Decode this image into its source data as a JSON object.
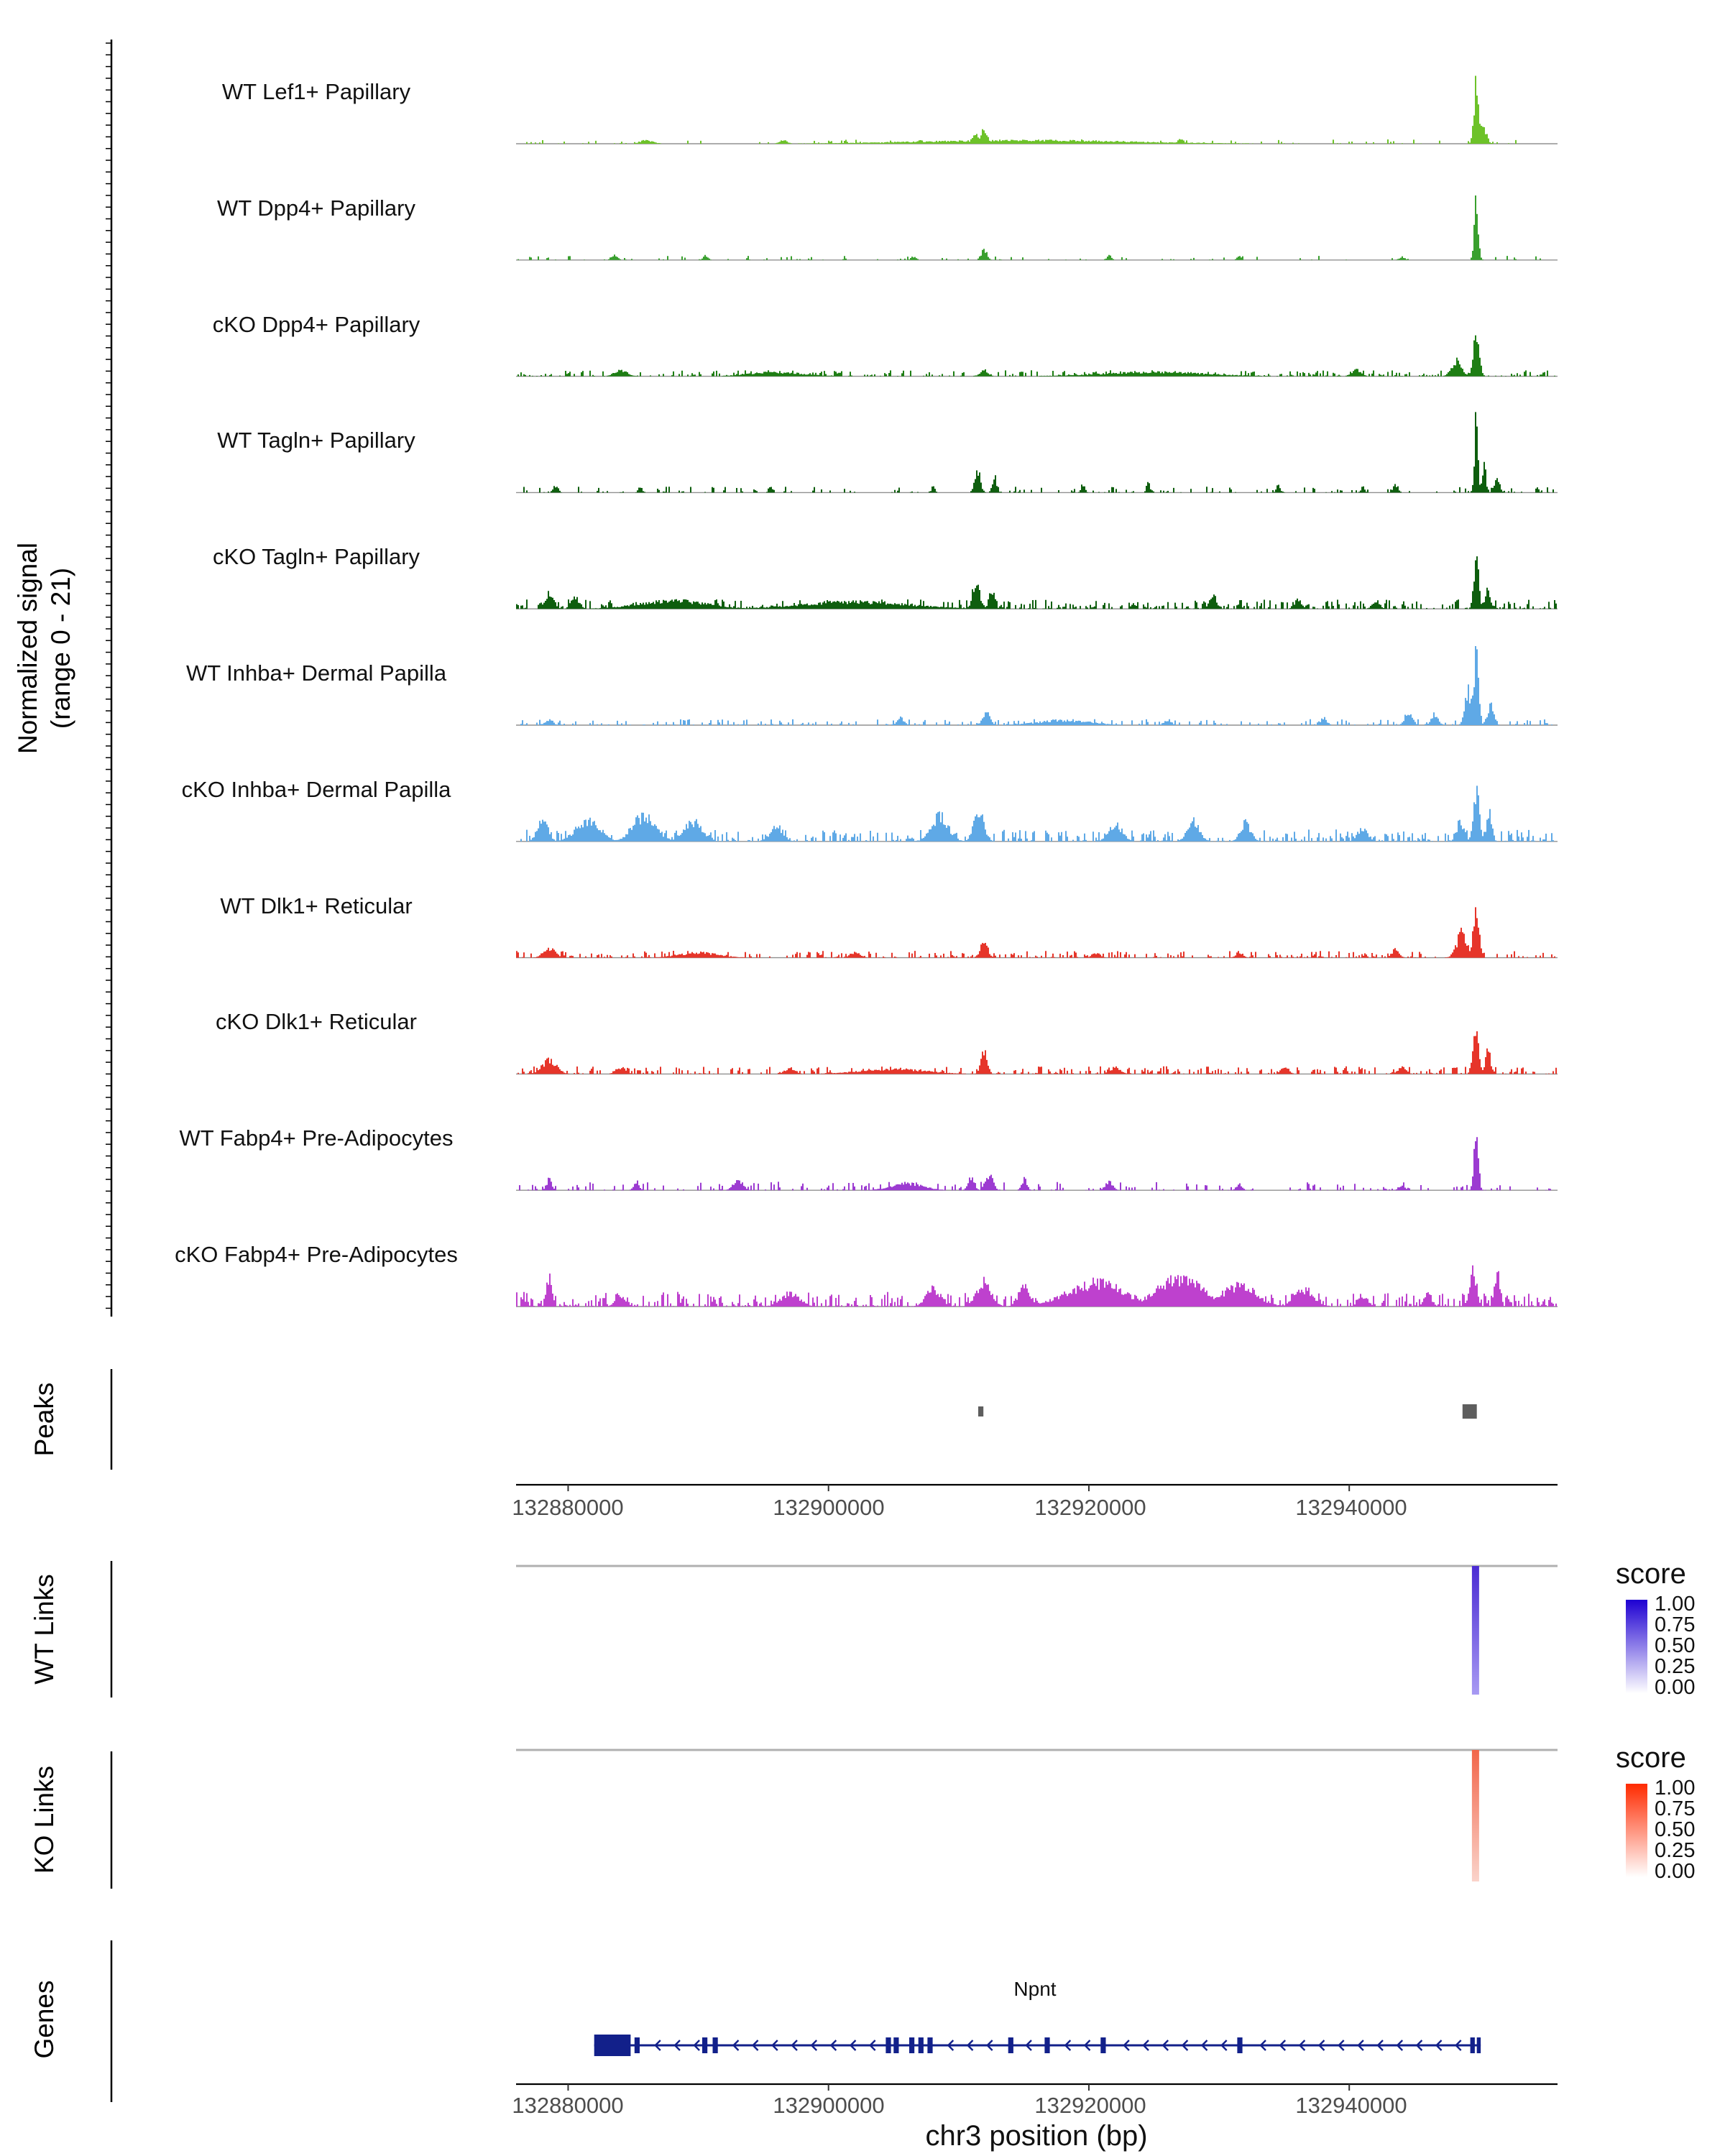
{
  "chart_data": {
    "type": "area",
    "title": "",
    "region": {
      "chrom": "chr3",
      "start": 132876000,
      "end": 132956000
    },
    "axis": {
      "y_label_line1": "Normalized signal",
      "y_label_line2": "(range 0 - 21)",
      "y_range": [
        0,
        21
      ],
      "x_label": "chr3 position (bp)",
      "x_ticks": [
        132880000,
        132900000,
        132920000,
        132940000
      ],
      "x_tick_labels": [
        "132880000",
        "132900000",
        "132920000",
        "132940000"
      ]
    },
    "section_labels": {
      "peaks": "Peaks",
      "wt_links": "WT Links",
      "ko_links": "KO Links",
      "genes": "Genes"
    },
    "tracks": [
      {
        "label": "WT Lef1+ Papillary",
        "color": "#6DC229",
        "noise": {
          "density": 0.22,
          "amp": 0.05
        },
        "peaks": [
          [
            132911900,
            0.22,
            260
          ],
          [
            132911300,
            0.12,
            350
          ],
          [
            132949700,
            0.92,
            170
          ],
          [
            132950200,
            0.28,
            260
          ],
          [
            132886000,
            0.05,
            500
          ],
          [
            132896500,
            0.05,
            300
          ],
          [
            132907000,
            0.05,
            300
          ],
          [
            132927000,
            0.06,
            250
          ],
          [
            132915000,
            0.05,
            8000
          ]
        ]
      },
      {
        "label": "WT Dpp4+ Papillary",
        "color": "#39A02E",
        "noise": {
          "density": 0.18,
          "amp": 0.05
        },
        "peaks": [
          [
            132911900,
            0.15,
            220
          ],
          [
            132949700,
            0.85,
            150
          ],
          [
            132883500,
            0.07,
            250
          ],
          [
            132890500,
            0.06,
            200
          ],
          [
            132906500,
            0.05,
            200
          ],
          [
            132921500,
            0.07,
            180
          ],
          [
            132931500,
            0.05,
            180
          ],
          [
            132944000,
            0.05,
            200
          ]
        ]
      },
      {
        "label": "cKO Dpp4+ Papillary",
        "color": "#1E7E14",
        "noise": {
          "density": 0.5,
          "amp": 0.07
        },
        "peaks": [
          [
            132949700,
            0.52,
            240
          ],
          [
            132948200,
            0.22,
            400
          ],
          [
            132911900,
            0.09,
            300
          ],
          [
            132884000,
            0.08,
            500
          ],
          [
            132940500,
            0.1,
            350
          ],
          [
            132925000,
            0.06,
            4000
          ],
          [
            132896000,
            0.06,
            2000
          ]
        ]
      },
      {
        "label": "WT Tagln+ Papillary",
        "color": "#0E5E0E",
        "noise": {
          "density": 0.3,
          "amp": 0.07
        },
        "peaks": [
          [
            132911400,
            0.3,
            220
          ],
          [
            132912700,
            0.26,
            160
          ],
          [
            132949700,
            1.0,
            140
          ],
          [
            132950300,
            0.45,
            130
          ],
          [
            132951300,
            0.22,
            200
          ],
          [
            132943500,
            0.12,
            200
          ],
          [
            132879000,
            0.1,
            180
          ],
          [
            132885500,
            0.08,
            150
          ],
          [
            132895500,
            0.12,
            130
          ],
          [
            132908000,
            0.1,
            130
          ],
          [
            132919500,
            0.12,
            150
          ],
          [
            132924500,
            0.14,
            130
          ],
          [
            132934500,
            0.1,
            150
          ],
          [
            132941000,
            0.08,
            150
          ]
        ]
      },
      {
        "label": "cKO Tagln+ Papillary",
        "color": "#0E5E0E",
        "noise": {
          "density": 0.6,
          "amp": 0.11
        },
        "peaks": [
          [
            132911300,
            0.44,
            260
          ],
          [
            132912500,
            0.3,
            200
          ],
          [
            132949700,
            0.74,
            180
          ],
          [
            132950600,
            0.28,
            200
          ],
          [
            132878500,
            0.22,
            350
          ],
          [
            132880500,
            0.18,
            300
          ],
          [
            132929500,
            0.18,
            280
          ],
          [
            132936000,
            0.14,
            260
          ],
          [
            132942000,
            0.12,
            280
          ],
          [
            132902000,
            0.1,
            4000
          ],
          [
            132888000,
            0.12,
            2500
          ]
        ]
      },
      {
        "label": "WT Inhba+ Dermal Papilla",
        "color": "#5FA9E6",
        "noise": {
          "density": 0.4,
          "amp": 0.07
        },
        "peaks": [
          [
            132949700,
            1.0,
            190
          ],
          [
            132949100,
            0.5,
            250
          ],
          [
            132950800,
            0.3,
            240
          ],
          [
            132944500,
            0.2,
            280
          ],
          [
            132946500,
            0.16,
            240
          ],
          [
            132912100,
            0.2,
            280
          ],
          [
            132905500,
            0.1,
            250
          ],
          [
            132878500,
            0.08,
            280
          ],
          [
            132926000,
            0.08,
            280
          ],
          [
            132938000,
            0.1,
            240
          ],
          [
            132918000,
            0.07,
            2000
          ]
        ]
      },
      {
        "label": "cKO Inhba+ Dermal Papilla",
        "color": "#5FA9E6",
        "noise": {
          "density": 0.65,
          "amp": 0.14
        },
        "peaks": [
          [
            132949700,
            0.74,
            230
          ],
          [
            132950700,
            0.45,
            200
          ],
          [
            132948500,
            0.3,
            280
          ],
          [
            132881500,
            0.32,
            900
          ],
          [
            132885800,
            0.36,
            900
          ],
          [
            132889500,
            0.3,
            700
          ],
          [
            132908500,
            0.36,
            650
          ],
          [
            132911500,
            0.42,
            400
          ],
          [
            132896000,
            0.22,
            450
          ],
          [
            132922000,
            0.26,
            500
          ],
          [
            132928000,
            0.3,
            450
          ],
          [
            132932000,
            0.26,
            400
          ],
          [
            132941000,
            0.2,
            380
          ],
          [
            132878000,
            0.3,
            400
          ]
        ]
      },
      {
        "label": "WT Dlk1+ Reticular",
        "color": "#E6352A",
        "noise": {
          "density": 0.5,
          "amp": 0.08
        },
        "peaks": [
          [
            132949700,
            0.68,
            230
          ],
          [
            132948600,
            0.36,
            380
          ],
          [
            132911900,
            0.24,
            280
          ],
          [
            132878500,
            0.14,
            450
          ],
          [
            132902000,
            0.08,
            380
          ],
          [
            132920500,
            0.07,
            300
          ],
          [
            132931500,
            0.08,
            260
          ],
          [
            132943500,
            0.12,
            280
          ],
          [
            132890000,
            0.07,
            1500
          ]
        ]
      },
      {
        "label": "cKO Dlk1+ Reticular",
        "color": "#E6352A",
        "noise": {
          "density": 0.55,
          "amp": 0.09
        },
        "peaks": [
          [
            132949700,
            0.56,
            230
          ],
          [
            132950600,
            0.34,
            200
          ],
          [
            132911900,
            0.3,
            240
          ],
          [
            132878500,
            0.2,
            550
          ],
          [
            132884000,
            0.1,
            380
          ],
          [
            132897000,
            0.09,
            380
          ],
          [
            132922000,
            0.09,
            380
          ],
          [
            132935000,
            0.1,
            300
          ],
          [
            132944000,
            0.1,
            300
          ],
          [
            132905000,
            0.07,
            2500
          ]
        ]
      },
      {
        "label": "WT Fabp4+ Pre-Adipocytes",
        "color": "#9C3BD1",
        "noise": {
          "density": 0.32,
          "amp": 0.1
        },
        "peaks": [
          [
            132949700,
            0.78,
            170
          ],
          [
            132912300,
            0.24,
            280
          ],
          [
            132910900,
            0.18,
            240
          ],
          [
            132915000,
            0.16,
            200
          ],
          [
            132885200,
            0.14,
            200
          ],
          [
            132878500,
            0.16,
            200
          ],
          [
            132893000,
            0.16,
            350
          ],
          [
            132921500,
            0.12,
            280
          ],
          [
            132931500,
            0.1,
            220
          ],
          [
            132944000,
            0.08,
            240
          ],
          [
            132906000,
            0.1,
            1200
          ]
        ]
      },
      {
        "label": "cKO Fabp4+ Pre-Adipocytes",
        "color": "#BE41CE",
        "noise": {
          "density": 0.75,
          "amp": 0.17
        },
        "peaks": [
          [
            132949500,
            0.5,
            240
          ],
          [
            132951300,
            0.55,
            200
          ],
          [
            132911900,
            0.36,
            550
          ],
          [
            132915000,
            0.3,
            450
          ],
          [
            132908000,
            0.26,
            550
          ],
          [
            132920500,
            0.34,
            2200
          ],
          [
            132927000,
            0.4,
            1800
          ],
          [
            132931500,
            0.3,
            1300
          ],
          [
            132897000,
            0.2,
            700
          ],
          [
            132878500,
            0.42,
            200
          ],
          [
            132884000,
            0.16,
            380
          ],
          [
            132941000,
            0.16,
            350
          ],
          [
            132946000,
            0.2,
            280
          ],
          [
            132936500,
            0.25,
            700
          ]
        ]
      }
    ],
    "peaks": {
      "color": "#5E5E5E",
      "intervals": [
        {
          "start": 132911500,
          "end": 132911900
        },
        {
          "start": 132948700,
          "end": 132949800
        }
      ]
    },
    "links": {
      "wt": {
        "pos": 132949700,
        "colors": [
          "#4B2BD3",
          "#A79AF3"
        ]
      },
      "ko": {
        "pos": 132949700,
        "colors": [
          "#F2664A",
          "#FAD3CA"
        ]
      }
    },
    "legend": {
      "title": "score",
      "tick_labels": [
        "1.00",
        "0.75",
        "0.50",
        "0.25",
        "0.00"
      ],
      "wt_colors": [
        "#1E00D2",
        "#FFFFFF"
      ],
      "ko_colors": [
        "#FF2A00",
        "#FFFFFF"
      ]
    },
    "gene": {
      "name": "Npnt",
      "strand": "-",
      "color": "#12208A",
      "start": 132882000,
      "end": 132950100,
      "exons": [
        [
          132882000,
          132884800,
          1
        ],
        [
          132885100,
          132885500
        ],
        [
          132890300,
          132890700
        ],
        [
          132891100,
          132891500
        ],
        [
          132904400,
          132904800
        ],
        [
          132905000,
          132905400
        ],
        [
          132906200,
          132906600
        ],
        [
          132906900,
          132907300
        ],
        [
          132907600,
          132908000
        ],
        [
          132913800,
          132914200
        ],
        [
          132916600,
          132917000
        ],
        [
          132920900,
          132921300
        ],
        [
          132931400,
          132931800
        ],
        [
          132949300,
          132949650
        ],
        [
          132949800,
          132950100
        ]
      ]
    }
  }
}
